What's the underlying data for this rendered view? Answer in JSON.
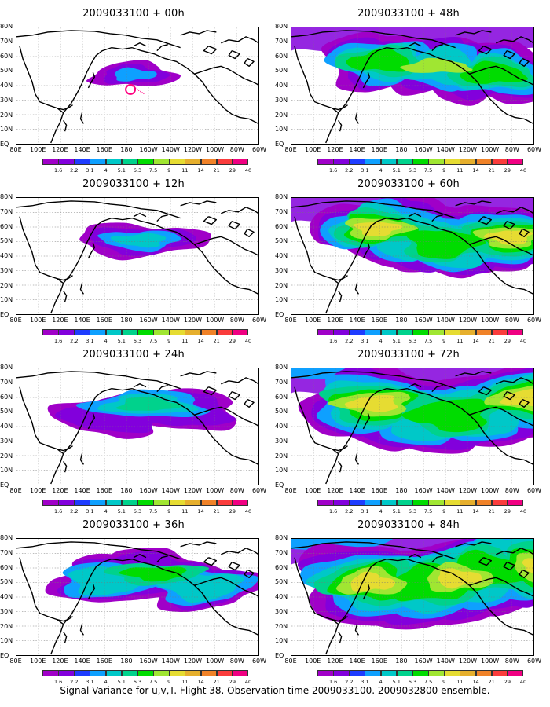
{
  "panels": [
    {
      "title": "2009033100 + 00h",
      "spread": 0
    },
    {
      "title": "2009033100 + 48h",
      "spread": 4
    },
    {
      "title": "2009033100 + 12h",
      "spread": 1
    },
    {
      "title": "2009033100 + 60h",
      "spread": 5
    },
    {
      "title": "2009033100 + 24h",
      "spread": 2
    },
    {
      "title": "2009033100 + 72h",
      "spread": 6
    },
    {
      "title": "2009033100 + 36h",
      "spread": 3
    },
    {
      "title": "2009033100 + 84h",
      "spread": 7
    }
  ],
  "lat_labels": [
    "80N",
    "70N",
    "60N",
    "50N",
    "40N",
    "30N",
    "20N",
    "10N",
    "EQ"
  ],
  "lon_labels": [
    "80E",
    "100E",
    "120E",
    "140E",
    "160E",
    "180",
    "160W",
    "140W",
    "120W",
    "100W",
    "80W",
    "60W"
  ],
  "colorbar": {
    "labels": [
      "1.6",
      "2.2",
      "3.1",
      "4",
      "5.1",
      "6.3",
      "7.5",
      "9",
      "11",
      "14",
      "21",
      "29",
      "40"
    ],
    "colors": [
      "#a000c8",
      "#8200dc",
      "#1e3cff",
      "#0ea0ff",
      "#00c8c8",
      "#00d28c",
      "#00dc00",
      "#a0e632",
      "#e6dc32",
      "#e6af2d",
      "#f08228",
      "#fa3c3c",
      "#f00082"
    ]
  },
  "caption": "Signal Variance for u,v,T. Flight 38. Observation time 2009033100. 2009032800 ensemble."
}
